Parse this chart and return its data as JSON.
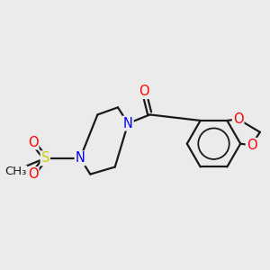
{
  "background_color": "#ebebeb",
  "bond_color": "#1a1a1a",
  "atom_colors": {
    "O": "#ff0000",
    "N": "#0000ee",
    "S": "#cccc00",
    "C": "#1a1a1a"
  },
  "bond_width": 1.6,
  "font_size_atoms": 10.5
}
